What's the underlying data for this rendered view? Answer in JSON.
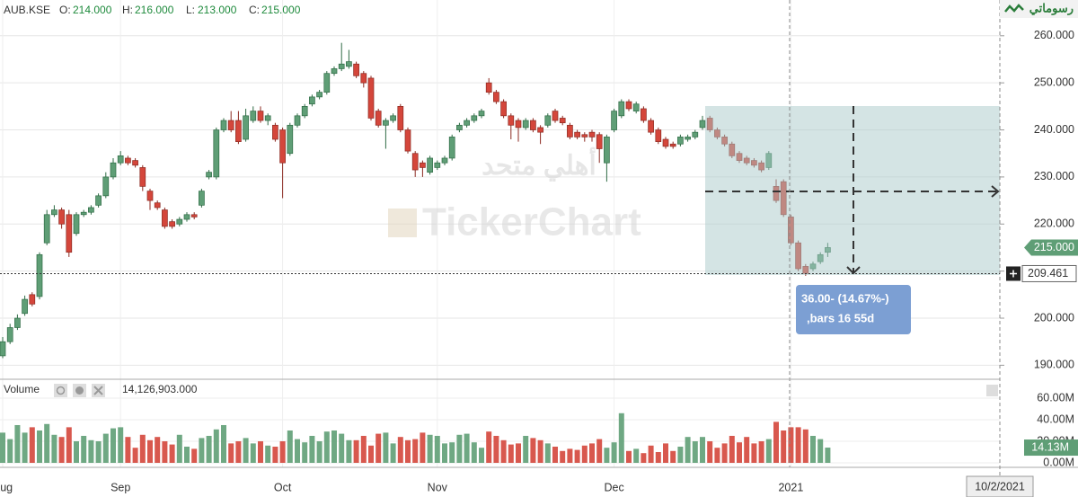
{
  "chart_data": {
    "type": "candlestick",
    "symbol": "AUB.KSE",
    "header_labels": [
      "O:",
      "H:",
      "L:",
      "C:"
    ],
    "header_values": [
      "214.000",
      "216.000",
      "213.000",
      "215.000"
    ],
    "logo": "رسوماتي",
    "watermark": "TickerChart",
    "watermark_ar": "أهلي متحد",
    "categories": [
      "Aug",
      null,
      null,
      null,
      null,
      null,
      null,
      null,
      null,
      null,
      null,
      null,
      null,
      null,
      null,
      null,
      "Sep",
      null,
      null,
      null,
      null,
      null,
      null,
      null,
      null,
      null,
      null,
      null,
      null,
      null,
      null,
      null,
      null,
      null,
      null,
      null,
      null,
      null,
      "Oct",
      null,
      null,
      null,
      null,
      null,
      null,
      null,
      null,
      null,
      null,
      null,
      null,
      null,
      null,
      null,
      null,
      null,
      null,
      null,
      null,
      "Nov",
      null,
      null,
      null,
      null,
      null,
      null,
      null,
      null,
      null,
      null,
      null,
      null,
      null,
      null,
      null,
      null,
      null,
      null,
      null,
      null,
      null,
      null,
      null,
      "Dec",
      null,
      null,
      null,
      null,
      null,
      null,
      null,
      null,
      null,
      null,
      null,
      null,
      null,
      null,
      null,
      null,
      null,
      null,
      null,
      null,
      null,
      null,
      null,
      "2021",
      null,
      null,
      null,
      null,
      null
    ],
    "open": [
      192,
      195,
      198,
      201,
      205,
      204.6,
      216,
      222,
      223,
      222,
      218,
      222,
      222.5,
      224,
      226,
      230,
      233,
      234,
      233.5,
      232,
      227,
      224.5,
      223,
      220.5,
      220,
      221,
      222,
      224,
      230,
      230,
      240,
      242,
      242,
      238,
      242,
      244,
      242,
      241,
      240,
      235,
      241,
      243,
      245.5,
      247,
      248,
      252,
      253,
      253.5,
      254,
      252,
      251,
      244,
      241,
      242,
      245,
      240,
      235,
      233,
      231,
      232,
      233,
      234,
      240,
      241,
      242,
      243,
      250,
      248,
      246,
      243,
      242,
      240.5,
      242,
      240.5,
      241,
      244,
      242.5,
      241,
      239.5,
      239,
      239.5,
      239,
      233,
      240,
      243,
      246,
      244,
      244.5,
      242,
      240,
      238,
      237,
      237,
      238,
      238.5,
      240.5,
      242.5,
      240,
      238.5,
      237,
      235,
      234,
      233.5,
      233,
      232,
      228,
      229,
      221.5,
      216,
      211,
      210.5,
      212,
      214
    ],
    "high": [
      196,
      198.8,
      200.8,
      204.8,
      205.5,
      214,
      223,
      224,
      223.5,
      223,
      222.5,
      223,
      224,
      226.5,
      231,
      234,
      235.5,
      234.5,
      234,
      232.5,
      227.5,
      225,
      223.5,
      221,
      221.5,
      222.5,
      222.5,
      227.5,
      231.5,
      240.5,
      242.5,
      244,
      244,
      244.5,
      245,
      245,
      243.5,
      241.5,
      240.5,
      241.5,
      243.5,
      245.5,
      247.5,
      248.5,
      252.5,
      253.5,
      258.5,
      257,
      254.5,
      252.5,
      251.5,
      244.5,
      242.5,
      243.5,
      245.5,
      240.5,
      235.5,
      233.5,
      234.5,
      233.5,
      234.5,
      239,
      241.5,
      242.5,
      243.5,
      244.5,
      251,
      248.5,
      246.5,
      243.5,
      242.5,
      242.5,
      242.5,
      241,
      243.5,
      244.5,
      243,
      241.5,
      240,
      239.5,
      240,
      239.5,
      239,
      244.5,
      246.5,
      246.5,
      246,
      245,
      242.5,
      240.5,
      238.5,
      237.5,
      239,
      239,
      240,
      243,
      243,
      240.5,
      239,
      237.5,
      235.5,
      234.5,
      234,
      233.5,
      235.5,
      229.5,
      229.5,
      222,
      216.5,
      211.5,
      212,
      214,
      216
    ],
    "low": [
      191.5,
      194.5,
      197.5,
      200.5,
      202.5,
      204,
      215.5,
      221.5,
      219,
      213,
      217.5,
      221.5,
      222,
      223.5,
      225.5,
      229.5,
      232.5,
      232.5,
      232,
      227,
      223,
      223,
      219,
      219,
      219.5,
      220.5,
      221,
      223.5,
      229.5,
      229.5,
      239.5,
      239.5,
      237,
      237.5,
      241.5,
      241.5,
      241,
      237.5,
      225.5,
      234.5,
      240.5,
      242.5,
      245,
      246.5,
      247.5,
      251.5,
      252.5,
      253,
      251,
      249,
      242,
      240.5,
      236,
      241.5,
      239.5,
      235,
      230,
      230,
      230.5,
      231.5,
      232.5,
      233.5,
      239.5,
      240.5,
      241.5,
      242.5,
      247.5,
      245.5,
      242.5,
      238,
      237.5,
      240,
      239.5,
      237,
      240.5,
      241.5,
      241,
      238,
      238,
      237.5,
      237.5,
      233,
      229,
      239.5,
      242.5,
      244,
      243.5,
      241.5,
      239,
      237,
      236,
      236,
      236.5,
      237.5,
      238,
      240,
      239.5,
      238,
      236.5,
      234,
      233,
      232.5,
      232,
      231,
      231.5,
      224.5,
      221.5,
      215.5,
      210,
      209,
      210,
      211.5,
      213
    ],
    "close": [
      195,
      198,
      200,
      204,
      203,
      213.5,
      222,
      223,
      220,
      214,
      222,
      222.5,
      223.5,
      226,
      230,
      233,
      234.5,
      233,
      232.5,
      228,
      225,
      223.5,
      219.5,
      219.5,
      221,
      222,
      221.5,
      227,
      231,
      240,
      242,
      240,
      237.5,
      243,
      244,
      242,
      243,
      238,
      233,
      241,
      243,
      245,
      247,
      248,
      252,
      253,
      254,
      254.5,
      251.5,
      250,
      242.5,
      241,
      242,
      243,
      240,
      235.5,
      231.5,
      232,
      234,
      233,
      234,
      238.5,
      241,
      242,
      243,
      244,
      248,
      246,
      243,
      241,
      240.5,
      242,
      240,
      239.5,
      243,
      242,
      241.5,
      238.5,
      238.5,
      238.5,
      238.5,
      236,
      238.5,
      244,
      246,
      244.5,
      245.5,
      242,
      239.5,
      237.5,
      236.5,
      236.5,
      238.5,
      238.5,
      239.5,
      242,
      240,
      238.5,
      237,
      234.5,
      233.5,
      233,
      232.5,
      231.5,
      235,
      225,
      222,
      216,
      210.5,
      209.5,
      211.5,
      213.5,
      215
    ],
    "volume": [
      28,
      22,
      35,
      28,
      33,
      30,
      36,
      26,
      24,
      33,
      20,
      25,
      21,
      20,
      27,
      32,
      33,
      24,
      14,
      26,
      21,
      24,
      20,
      17,
      26,
      15,
      13,
      23,
      25,
      31,
      35,
      18,
      20,
      23,
      18,
      20,
      16,
      15,
      20,
      30,
      22,
      19,
      25,
      20,
      29,
      30,
      27,
      21,
      21,
      25,
      16,
      27,
      28,
      18,
      24,
      21,
      22,
      28,
      26,
      25,
      18,
      19,
      26,
      27,
      19,
      14,
      29,
      25,
      21,
      17,
      18,
      25,
      23,
      21,
      18,
      15,
      11,
      13,
      12,
      16,
      18,
      22,
      14,
      19,
      46,
      11,
      13,
      9,
      16,
      10,
      18,
      11,
      15,
      24,
      20,
      24,
      20,
      14,
      18,
      25,
      19,
      24,
      18,
      20,
      22,
      38,
      30,
      33,
      33,
      31,
      25,
      22,
      14.126903
    ],
    "up_color": "#5f9e76",
    "down_color": "#d4463b",
    "ylim": [
      187.4,
      267.6
    ],
    "yticks": [
      {
        "value": 190,
        "label": "190.000"
      },
      {
        "value": 200,
        "label": "200.000"
      },
      {
        "value": 210,
        "label": "210.000"
      },
      {
        "value": 220,
        "label": "220.000"
      },
      {
        "value": 230,
        "label": "230.000"
      },
      {
        "value": 240,
        "label": "240.000"
      },
      {
        "value": 250,
        "label": "250.000"
      },
      {
        "value": 260,
        "label": "260.000"
      }
    ],
    "grid": true,
    "last_price_label": "215.000",
    "crosshair_price": 209.461,
    "measure_lines": [
      "36.00- (14.67%-)",
      ",bars 16  55d"
    ],
    "volume_label": "Volume",
    "volume_value": "14,126,903.000",
    "volume_ylim": [
      0,
      75.8
    ],
    "volume_yticks": [
      {
        "value": 0,
        "label": "0.00M"
      },
      {
        "value": 20,
        "label": "20.00M"
      },
      {
        "value": 40,
        "label": "40.00M"
      },
      {
        "value": 60,
        "label": "60.00M"
      }
    ],
    "last_volume_label": "14.13M",
    "date_label": "10/2/2021"
  }
}
